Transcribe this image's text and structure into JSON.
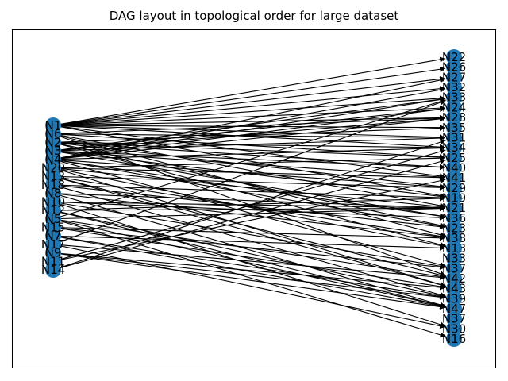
{
  "title": "DAG layout in topological order for large dataset",
  "colors": {
    "node": "#1f77b4",
    "edge": "#000000",
    "frame": "#000000"
  },
  "graph": {
    "left_nodes": [
      "N1",
      "N6",
      "N2",
      "N3",
      "N4",
      "N20",
      "N13",
      "N18",
      "N8",
      "N10",
      "N12",
      "N5",
      "N15",
      "N7",
      "N17",
      "N9",
      "N11",
      "N14"
    ],
    "right_nodes": [
      "N22",
      "N26",
      "N27",
      "N32",
      "N33",
      "N24",
      "N28",
      "N35",
      "N31",
      "N34",
      "N25",
      "N40",
      "N41",
      "N29",
      "N19",
      "N21",
      "N36",
      "N23",
      "N38",
      "N13",
      "N33",
      "N37",
      "N42",
      "N43",
      "N39",
      "N47",
      "N37",
      "N30",
      "N16"
    ],
    "edges": [
      [
        "N1",
        "N22"
      ],
      [
        "N1",
        "N26"
      ],
      [
        "N1",
        "N27"
      ],
      [
        "N1",
        "N32"
      ],
      [
        "N1",
        "N33"
      ],
      [
        "N1",
        "N24"
      ],
      [
        "N1",
        "N28"
      ],
      [
        "N1",
        "N35"
      ],
      [
        "N1",
        "N31"
      ],
      [
        "N1",
        "N34"
      ],
      [
        "N1",
        "N41"
      ],
      [
        "N1",
        "N19"
      ],
      [
        "N6",
        "N28"
      ],
      [
        "N6",
        "N31"
      ],
      [
        "N6",
        "N25"
      ],
      [
        "N6",
        "N21"
      ],
      [
        "N6",
        "N38"
      ],
      [
        "N6",
        "N42"
      ],
      [
        "N2",
        "N35"
      ],
      [
        "N2",
        "N34"
      ],
      [
        "N2",
        "N25"
      ],
      [
        "N2",
        "N40"
      ],
      [
        "N2",
        "N29"
      ],
      [
        "N2",
        "N23"
      ],
      [
        "N2",
        "N13"
      ],
      [
        "N3",
        "N24"
      ],
      [
        "N3",
        "N28"
      ],
      [
        "N3",
        "N31"
      ],
      [
        "N3",
        "N40"
      ],
      [
        "N3",
        "N41"
      ],
      [
        "N3",
        "N19"
      ],
      [
        "N3",
        "N36"
      ],
      [
        "N3",
        "N33"
      ],
      [
        "N4",
        "N27"
      ],
      [
        "N4",
        "N32"
      ],
      [
        "N4",
        "N33"
      ],
      [
        "N4",
        "N24"
      ],
      [
        "N4",
        "N28"
      ],
      [
        "N4",
        "N34"
      ],
      [
        "N4",
        "N29"
      ],
      [
        "N4",
        "N36"
      ],
      [
        "N4",
        "N23"
      ],
      [
        "N4",
        "N37"
      ],
      [
        "N20",
        "N25"
      ],
      [
        "N20",
        "N41"
      ],
      [
        "N20",
        "N21"
      ],
      [
        "N20",
        "N13"
      ],
      [
        "N20",
        "N43"
      ],
      [
        "N13",
        "N29"
      ],
      [
        "N13",
        "N38"
      ],
      [
        "N13",
        "N42"
      ],
      [
        "N13",
        "N43"
      ],
      [
        "N18",
        "N19"
      ],
      [
        "N18",
        "N23"
      ],
      [
        "N18",
        "N39"
      ],
      [
        "N8",
        "N21"
      ],
      [
        "N8",
        "N38"
      ],
      [
        "N8",
        "N47"
      ],
      [
        "N10",
        "N21"
      ],
      [
        "N10",
        "N36"
      ],
      [
        "N10",
        "N37"
      ],
      [
        "N10",
        "N30"
      ],
      [
        "N12",
        "N19"
      ],
      [
        "N12",
        "N21"
      ],
      [
        "N12",
        "N39"
      ],
      [
        "N12",
        "N47"
      ],
      [
        "N5",
        "N21"
      ],
      [
        "N5",
        "N33"
      ],
      [
        "N5",
        "N42"
      ],
      [
        "N5",
        "N47"
      ],
      [
        "N5",
        "N16"
      ],
      [
        "N15",
        "N38"
      ],
      [
        "N15",
        "N43"
      ],
      [
        "N15",
        "N37"
      ],
      [
        "N7",
        "N13"
      ],
      [
        "N7",
        "N39"
      ],
      [
        "N7",
        "N47"
      ],
      [
        "N17",
        "N33"
      ],
      [
        "N17",
        "N42"
      ],
      [
        "N17",
        "N30"
      ],
      [
        "N9",
        "N43"
      ],
      [
        "N9",
        "N39"
      ],
      [
        "N9",
        "N47"
      ],
      [
        "N11",
        "N34"
      ],
      [
        "N11",
        "N41"
      ],
      [
        "N14",
        "N31"
      ],
      [
        "N14",
        "N25"
      ]
    ]
  }
}
